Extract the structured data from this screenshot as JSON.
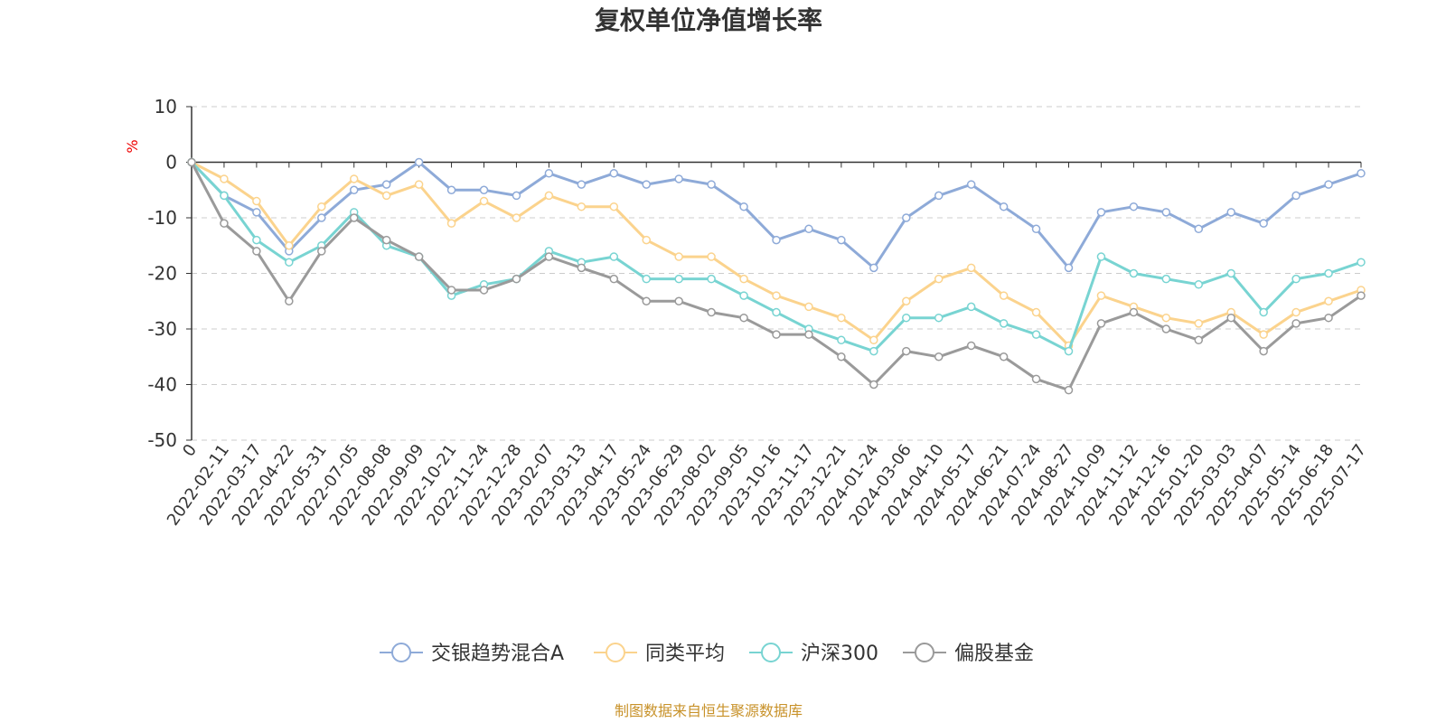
{
  "chart_data": {
    "type": "line",
    "title": "复权单位净值增长率",
    "ylabel": "%",
    "ylim": [
      -50,
      10
    ],
    "yticks": [
      10,
      0,
      -10,
      -20,
      -30,
      -40,
      -50
    ],
    "grid": true,
    "legend_position": "bottom",
    "x": [
      "0",
      "2022-02-11",
      "2022-03-17",
      "2022-04-22",
      "2022-05-31",
      "2022-07-05",
      "2022-08-08",
      "2022-09-09",
      "2022-10-21",
      "2022-11-24",
      "2022-12-28",
      "2023-02-07",
      "2023-03-13",
      "2023-04-17",
      "2023-05-24",
      "2023-06-29",
      "2023-08-02",
      "2023-09-05",
      "2023-10-16",
      "2023-11-17",
      "2023-12-21",
      "2024-01-24",
      "2024-03-06",
      "2024-04-10",
      "2024-05-17",
      "2024-06-21",
      "2024-07-24",
      "2024-08-27",
      "2024-10-09",
      "2024-11-12",
      "2024-12-16",
      "2025-01-20",
      "2025-03-03",
      "2025-04-07",
      "2025-05-14",
      "2025-06-18",
      "2025-07-17"
    ],
    "series": [
      {
        "name": "交银趋势混合A",
        "color": "#8eaad8",
        "values": [
          0,
          -6,
          -9,
          -16,
          -10,
          -5,
          -4,
          0,
          -5,
          -5,
          -6,
          -2,
          -4,
          -2,
          -4,
          -3,
          -4,
          -8,
          -14,
          -12,
          -14,
          -19,
          -10,
          -6,
          -4,
          -8,
          -12,
          -19,
          -9,
          -8,
          -9,
          -12,
          -9,
          -11,
          -6,
          -4,
          -2
        ]
      },
      {
        "name": "同类平均",
        "color": "#fbd38d",
        "values": [
          0,
          -3,
          -7,
          -15,
          -8,
          -3,
          -6,
          -4,
          -11,
          -7,
          -10,
          -6,
          -8,
          -8,
          -14,
          -17,
          -17,
          -21,
          -24,
          -26,
          -28,
          -32,
          -25,
          -21,
          -19,
          -24,
          -27,
          -33,
          -24,
          -26,
          -28,
          -29,
          -27,
          -31,
          -27,
          -25,
          -23
        ]
      },
      {
        "name": "沪深300",
        "color": "#78d4d2",
        "values": [
          0,
          -6,
          -14,
          -18,
          -15,
          -9,
          -15,
          -17,
          -24,
          -22,
          -21,
          -16,
          -18,
          -17,
          -21,
          -21,
          -21,
          -24,
          -27,
          -30,
          -32,
          -34,
          -28,
          -28,
          -26,
          -29,
          -31,
          -34,
          -17,
          -20,
          -21,
          -22,
          -20,
          -27,
          -21,
          -20,
          -18
        ]
      },
      {
        "name": "偏股基金",
        "color": "#9a9a9a",
        "values": [
          0,
          -11,
          -16,
          -25,
          -16,
          -10,
          -14,
          -17,
          -23,
          -23,
          -21,
          -17,
          -19,
          -21,
          -25,
          -25,
          -27,
          -28,
          -31,
          -31,
          -35,
          -40,
          -34,
          -35,
          -33,
          -35,
          -39,
          -41,
          -29,
          -27,
          -30,
          -32,
          -28,
          -34,
          -29,
          -28,
          -24
        ]
      }
    ]
  },
  "source_note": "制图数据来自恒生聚源数据库"
}
